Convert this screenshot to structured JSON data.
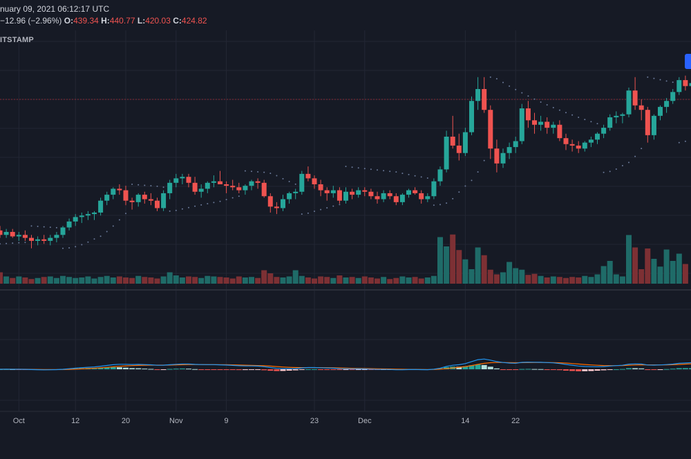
{
  "header": {
    "date_text": "nuary 09, 2021 06:12:17 UTC",
    "change_text": "−12.96 (−2.96%)",
    "open_label": "O:",
    "open_value": "439.34",
    "high_label": "H:",
    "high_value": "440.77",
    "low_label": "L:",
    "low_value": "420.03",
    "close_label": "C:",
    "close_value": "424.82"
  },
  "exchange_label": "ITSTAMP",
  "colors": {
    "background": "#161a25",
    "up": "#26a69a",
    "down": "#ef5350",
    "volume_up": "#1f6b68",
    "volume_down": "#7d3034",
    "sar": "#6b7a99",
    "macd_line": "#2196f3",
    "signal_line": "#ff6d00",
    "hist_up_strong": "#26a69a",
    "hist_up_weak": "#b2dfdb",
    "hist_down_strong": "#ef5350",
    "hist_down_weak": "#ffcdd2",
    "grid": "#232734",
    "reference_line": "#8b2b35"
  },
  "chart_data": {
    "type": "candlestick",
    "x_tick_labels": [
      "Oct",
      "12",
      "20",
      "Nov",
      "9",
      "23",
      "Dec",
      "14",
      "22"
    ],
    "x_tick_indices": [
      3,
      12,
      20,
      28,
      36,
      50,
      58,
      74,
      82
    ],
    "grid": true,
    "ohlc": [
      [
        353.0,
        356.0,
        348.0,
        350.0
      ],
      [
        350.0,
        354.0,
        348.0,
        352.0
      ],
      [
        352.0,
        354.0,
        348.0,
        349.0
      ],
      [
        349.0,
        352.0,
        346.0,
        350.0
      ],
      [
        350.0,
        353.0,
        346.0,
        348.0
      ],
      [
        348.0,
        350.0,
        341.0,
        346.0
      ],
      [
        346.0,
        349.0,
        343.0,
        347.0
      ],
      [
        347.0,
        350.0,
        344.0,
        346.0
      ],
      [
        346.0,
        350.0,
        343.0,
        348.0
      ],
      [
        348.0,
        352.0,
        345.0,
        350.0
      ],
      [
        350.0,
        356.0,
        348.0,
        355.0
      ],
      [
        355.0,
        361.0,
        353.0,
        359.0
      ],
      [
        359.0,
        364.0,
        356.0,
        362.0
      ],
      [
        362.0,
        365.0,
        358.0,
        363.0
      ],
      [
        363.0,
        366.0,
        360.0,
        364.0
      ],
      [
        364.0,
        366.0,
        360.0,
        365.0
      ],
      [
        365.0,
        375.0,
        363.0,
        373.0
      ],
      [
        373.0,
        379.0,
        370.0,
        377.0
      ],
      [
        377.0,
        382.0,
        374.0,
        381.0
      ],
      [
        381.0,
        384.0,
        377.0,
        380.0
      ],
      [
        380.0,
        383.0,
        370.0,
        373.0
      ],
      [
        373.0,
        375.0,
        367.0,
        372.0
      ],
      [
        372.0,
        378.0,
        369.0,
        377.0
      ],
      [
        377.0,
        379.0,
        371.0,
        374.0
      ],
      [
        374.0,
        378.0,
        370.0,
        373.0
      ],
      [
        373.0,
        375.0,
        366.0,
        368.0
      ],
      [
        368.0,
        380.0,
        366.0,
        378.0
      ],
      [
        378.0,
        387.0,
        374.0,
        385.0
      ],
      [
        385.0,
        391.0,
        382.0,
        388.0
      ],
      [
        388.0,
        391.0,
        384.0,
        389.0
      ],
      [
        389.0,
        391.0,
        382.0,
        385.0
      ],
      [
        385.0,
        389.0,
        377.0,
        379.0
      ],
      [
        379.0,
        384.0,
        375.0,
        381.0
      ],
      [
        381.0,
        386.0,
        378.0,
        385.0
      ],
      [
        385.0,
        390.0,
        382.0,
        386.0
      ],
      [
        386.0,
        393.0,
        385.0,
        384.0
      ],
      [
        384.0,
        386.0,
        378.0,
        383.0
      ],
      [
        383.0,
        387.0,
        380.0,
        382.0
      ],
      [
        382.0,
        385.0,
        378.0,
        380.0
      ],
      [
        380.0,
        384.0,
        377.0,
        383.0
      ],
      [
        383.0,
        387.0,
        380.0,
        386.0
      ],
      [
        386.0,
        388.0,
        381.0,
        385.0
      ],
      [
        385.0,
        387.0,
        375.0,
        376.0
      ],
      [
        376.0,
        378.0,
        365.0,
        369.0
      ],
      [
        369.0,
        372.0,
        364.0,
        368.0
      ],
      [
        368.0,
        377.0,
        366.0,
        374.0
      ],
      [
        374.0,
        379.0,
        371.0,
        378.0
      ],
      [
        378.0,
        381.0,
        374.0,
        379.0
      ],
      [
        379.0,
        393.0,
        377.0,
        391.0
      ],
      [
        391.0,
        396.0,
        386.0,
        388.0
      ],
      [
        388.0,
        390.0,
        381.0,
        384.0
      ],
      [
        384.0,
        387.0,
        376.0,
        380.0
      ],
      [
        380.0,
        382.0,
        373.0,
        378.0
      ],
      [
        378.0,
        383.0,
        375.0,
        380.0
      ],
      [
        380.0,
        382.0,
        371.0,
        373.0
      ],
      [
        373.0,
        382.0,
        371.0,
        379.0
      ],
      [
        379.0,
        381.0,
        374.0,
        377.0
      ],
      [
        377.0,
        382.0,
        375.0,
        380.0
      ],
      [
        380.0,
        382.0,
        376.0,
        379.0
      ],
      [
        379.0,
        381.0,
        374.0,
        376.0
      ],
      [
        376.0,
        379.0,
        371.0,
        374.0
      ],
      [
        374.0,
        380.0,
        372.0,
        378.0
      ],
      [
        378.0,
        380.0,
        374.0,
        376.0
      ],
      [
        376.0,
        378.0,
        370.0,
        372.0
      ],
      [
        372.0,
        378.0,
        370.0,
        377.0
      ],
      [
        377.0,
        381.0,
        375.0,
        380.0
      ],
      [
        380.0,
        382.0,
        377.0,
        378.0
      ],
      [
        378.0,
        380.0,
        371.0,
        374.0
      ],
      [
        374.0,
        378.0,
        372.0,
        376.0
      ],
      [
        376.0,
        388.0,
        374.0,
        386.0
      ],
      [
        386.0,
        396.0,
        383.0,
        394.0
      ],
      [
        394.0,
        420.0,
        392.0,
        416.0
      ],
      [
        416.0,
        430.0,
        408.0,
        410.0
      ],
      [
        410.0,
        418.0,
        400.0,
        405.0
      ],
      [
        405.0,
        422.0,
        403.0,
        419.0
      ],
      [
        419.0,
        443.0,
        417.0,
        440.0
      ],
      [
        440.0,
        456.0,
        434.0,
        448.0
      ],
      [
        448.0,
        456.0,
        432.0,
        434.0
      ],
      [
        434.0,
        437.0,
        401.0,
        408.0
      ],
      [
        408.0,
        414.0,
        392.0,
        398.0
      ],
      [
        398.0,
        408.0,
        395.0,
        405.0
      ],
      [
        405.0,
        412.0,
        401.0,
        409.0
      ],
      [
        409.0,
        416.0,
        405.0,
        413.0
      ],
      [
        413.0,
        438.0,
        411.0,
        435.0
      ],
      [
        435.0,
        440.0,
        422.0,
        427.0
      ],
      [
        427.0,
        432.0,
        418.0,
        424.0
      ],
      [
        424.0,
        430.0,
        420.0,
        426.0
      ],
      [
        426.0,
        429.0,
        418.0,
        422.0
      ],
      [
        422.0,
        426.0,
        418.0,
        424.0
      ],
      [
        424.0,
        427.0,
        413.0,
        415.0
      ],
      [
        415.0,
        418.0,
        407.0,
        411.0
      ],
      [
        411.0,
        414.0,
        406.0,
        410.0
      ],
      [
        410.0,
        413.0,
        405.0,
        408.0
      ],
      [
        408.0,
        413.0,
        406.0,
        412.0
      ],
      [
        412.0,
        416.0,
        409.0,
        414.0
      ],
      [
        414.0,
        419.0,
        411.0,
        418.0
      ],
      [
        418.0,
        424.0,
        415.0,
        422.0
      ],
      [
        422.0,
        431.0,
        420.0,
        429.0
      ],
      [
        429.0,
        433.0,
        425.0,
        430.0
      ],
      [
        430.0,
        432.0,
        425.0,
        431.0
      ],
      [
        431.0,
        449.0,
        429.0,
        447.0
      ],
      [
        447.0,
        456.0,
        434.0,
        437.0
      ],
      [
        437.0,
        441.0,
        427.0,
        434.0
      ],
      [
        434.0,
        436.0,
        412.0,
        417.0
      ],
      [
        417.0,
        431.0,
        414.0,
        430.0
      ],
      [
        430.0,
        437.0,
        427.0,
        436.0
      ],
      [
        436.0,
        442.0,
        432.0,
        440.0
      ],
      [
        440.0,
        448.0,
        438.0,
        446.0
      ],
      [
        446.0,
        456.0,
        444.0,
        454.0
      ],
      [
        454.0,
        457.0,
        447.0,
        450.0
      ],
      [
        450.0,
        454.0,
        442.0,
        452.0
      ]
    ],
    "volume": [
      22,
      14,
      11,
      14,
      12,
      9,
      11,
      13,
      14,
      11,
      15,
      13,
      11,
      12,
      14,
      10,
      13,
      15,
      12,
      14,
      12,
      11,
      15,
      13,
      12,
      10,
      14,
      22,
      16,
      12,
      14,
      13,
      11,
      15,
      14,
      13,
      12,
      10,
      14,
      12,
      13,
      11,
      26,
      20,
      13,
      12,
      14,
      26,
      15,
      12,
      10,
      14,
      13,
      11,
      16,
      12,
      13,
      11,
      14,
      12,
      10,
      13,
      9,
      11,
      14,
      12,
      13,
      10,
      12,
      15,
      90,
      72,
      95,
      65,
      47,
      28,
      70,
      55,
      27,
      18,
      22,
      42,
      30,
      27,
      17,
      19,
      15,
      12,
      14,
      13,
      11,
      13,
      12,
      15,
      13,
      18,
      34,
      44,
      18,
      14,
      94,
      70,
      28,
      68,
      48,
      33,
      66,
      44,
      58,
      38
    ]
  }
}
